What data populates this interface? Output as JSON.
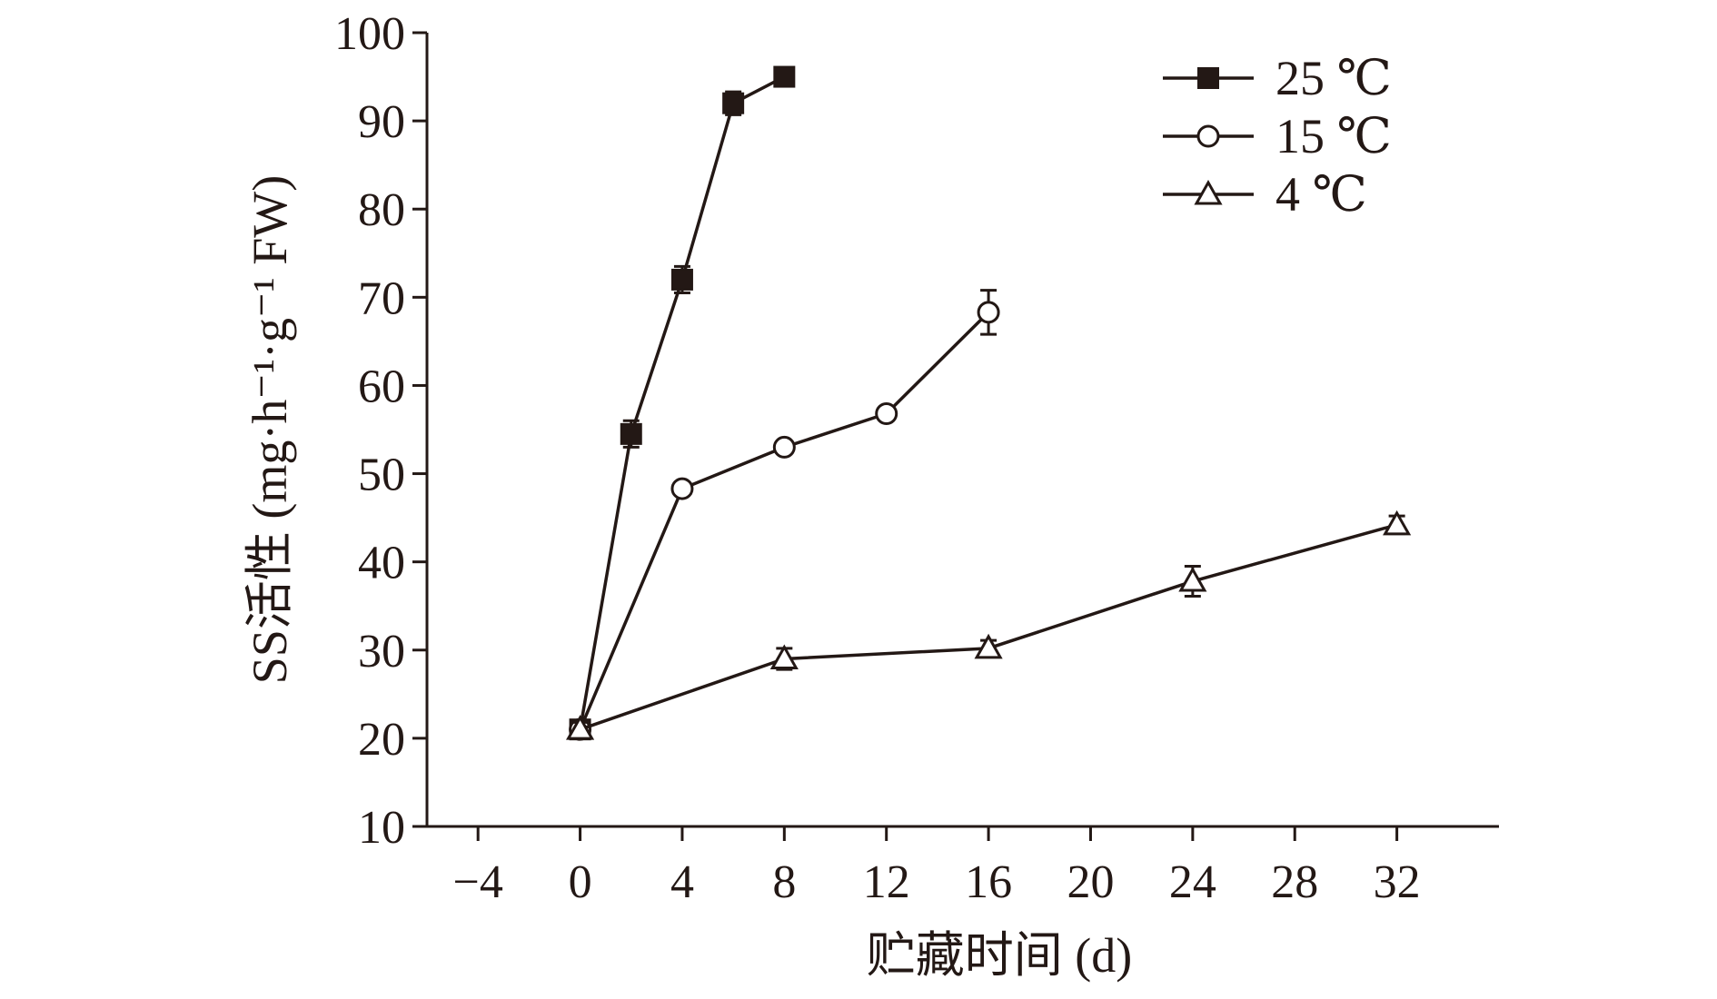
{
  "chart_data": {
    "type": "line",
    "title": "",
    "xlabel": "贮藏时间 (d)",
    "ylabel": "SS活性 (mg·h⁻¹·g⁻¹ FW)",
    "xlim": [
      -6,
      36
    ],
    "ylim": [
      10,
      100
    ],
    "x_ticks": [
      -4,
      0,
      4,
      8,
      12,
      16,
      20,
      24,
      28,
      32
    ],
    "x_tick_labels": [
      "−4",
      "0",
      "4",
      "8",
      "12",
      "16",
      "20",
      "24",
      "28",
      "32"
    ],
    "y_ticks": [
      10,
      20,
      30,
      40,
      50,
      60,
      70,
      80,
      90,
      100
    ],
    "y_tick_labels": [
      "10",
      "20",
      "30",
      "40",
      "50",
      "60",
      "70",
      "80",
      "90",
      "100"
    ],
    "legend_position": "top-right",
    "grid": false,
    "series": [
      {
        "name": "25 ℃",
        "marker": "filled-square",
        "x": [
          0,
          2,
          4,
          6,
          8
        ],
        "y": [
          21,
          54.5,
          72,
          92,
          95
        ],
        "error": [
          0.8,
          1.5,
          1.5,
          1.3,
          0.6
        ]
      },
      {
        "name": "15 ℃",
        "marker": "open-circle",
        "x": [
          0,
          4,
          8,
          12,
          16
        ],
        "y": [
          21,
          48.3,
          53,
          56.8,
          68.3
        ],
        "error": [
          0.8,
          0.6,
          0.6,
          0.7,
          2.5
        ]
      },
      {
        "name": "4 ℃",
        "marker": "open-triangle",
        "x": [
          0,
          8,
          16,
          24,
          32
        ],
        "y": [
          21,
          29,
          30.2,
          37.8,
          44.2
        ],
        "error": [
          0.8,
          1.2,
          0.9,
          1.7,
          1.0
        ]
      }
    ]
  }
}
